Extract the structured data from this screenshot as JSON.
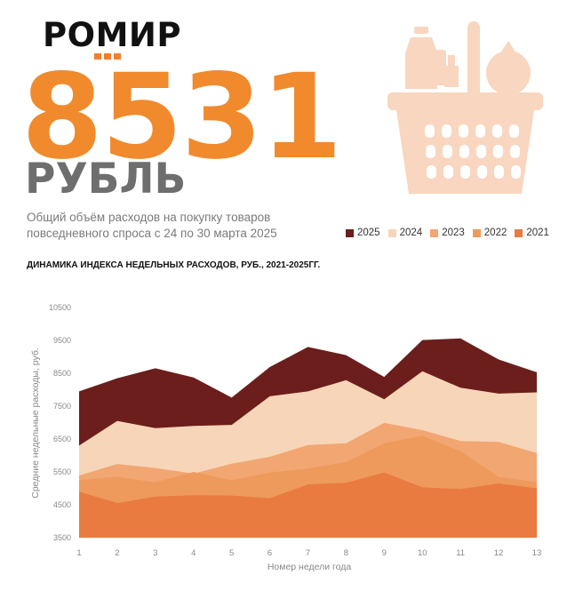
{
  "logo": {
    "text": "РОМИР"
  },
  "headline": {
    "value": "8531",
    "unit": "РУБЛЬ"
  },
  "description": {
    "line1": "Общий объём расходов на покупку товаров",
    "line2": "повседневного спроса с 24 по 30 марта 2025"
  },
  "colors": {
    "accent": "#f08a2c",
    "2025": "#6b1e1b",
    "2024": "#f7d5b8",
    "2023": "#f2a672",
    "2022": "#ee9a5c",
    "2021": "#e97a40",
    "basket": "#f8d6c0"
  },
  "chart_data": {
    "type": "area",
    "title": "ДИНАМИКА ИНДЕКСА НЕДЕЛЬНЫХ РАСХОДОВ, РУБ., 2021-2025ГГ.",
    "xlabel": "Номер недели года",
    "ylabel": "Средние недельные расходы, руб.",
    "ylim": [
      3500,
      10500
    ],
    "yticks": [
      3500,
      4500,
      5500,
      6500,
      7500,
      8500,
      9500,
      10500
    ],
    "x": [
      1,
      2,
      3,
      4,
      5,
      6,
      7,
      8,
      9,
      10,
      11,
      12,
      13
    ],
    "legend_position": "top-right",
    "series": [
      {
        "name": "2025",
        "values": [
          7950,
          8350,
          8650,
          8370,
          7760,
          8690,
          9300,
          9050,
          8390,
          9510,
          9560,
          8920,
          8530
        ]
      },
      {
        "name": "2024",
        "values": [
          6300,
          7050,
          6830,
          6900,
          6930,
          7800,
          7950,
          8290,
          7710,
          8560,
          8060,
          7880,
          7920
        ]
      },
      {
        "name": "2023",
        "values": [
          5390,
          5740,
          5620,
          5450,
          5750,
          5960,
          6320,
          6370,
          6990,
          6770,
          6440,
          6410,
          6070
        ]
      },
      {
        "name": "2022",
        "values": [
          5250,
          5350,
          5180,
          5500,
          5250,
          5480,
          5600,
          5800,
          6370,
          6600,
          6130,
          5350,
          5180
        ]
      },
      {
        "name": "2021",
        "values": [
          4900,
          4550,
          4750,
          4790,
          4780,
          4700,
          5120,
          5170,
          5480,
          5030,
          4980,
          5150,
          5000
        ]
      }
    ]
  }
}
